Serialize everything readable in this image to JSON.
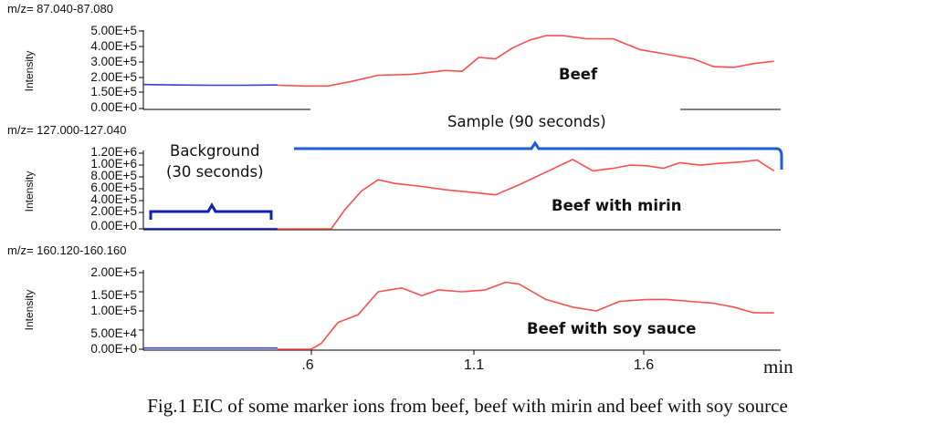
{
  "caption": "Fig.1 EIC of some marker ions from beef, beef with mirin and beef with soy source",
  "x_unit": "min",
  "x_ticks": [
    ".6",
    "1.1",
    "1.6"
  ],
  "annotations": {
    "background_line1": "Background",
    "background_line2": "(30 seconds)",
    "sample": "Sample (90 seconds)"
  },
  "colors": {
    "background_trace": "#3340c8",
    "sample_trace": "#ff4d4d",
    "bracket": "#1a5fd6",
    "bracket_dark": "#1020b0"
  },
  "chart_data": [
    {
      "type": "line",
      "mz_label": "m/z= 87.040-87.080",
      "ylabel": "Intensity",
      "panel_label": "Beef",
      "y_ticks": [
        "5.00E+5",
        "4.00E+5",
        "3.00E+5",
        "2.00E+5",
        "1.50E+5",
        "0.00E+0"
      ],
      "ylim": [
        0,
        500000
      ],
      "xlim": [
        0.1,
        2.0
      ],
      "series": [
        {
          "role": "background",
          "x": [
            0.1,
            0.2,
            0.3,
            0.4,
            0.5
          ],
          "y": [
            155000,
            152000,
            150000,
            150000,
            152000
          ]
        },
        {
          "role": "sample",
          "x": [
            0.5,
            0.58,
            0.65,
            0.72,
            0.8,
            0.9,
            1.0,
            1.05,
            1.1,
            1.15,
            1.2,
            1.25,
            1.3,
            1.35,
            1.42,
            1.5,
            1.58,
            1.66,
            1.74,
            1.8,
            1.86,
            1.92,
            1.98
          ],
          "y": [
            150000,
            145000,
            145000,
            175000,
            215000,
            220000,
            245000,
            240000,
            330000,
            320000,
            390000,
            440000,
            470000,
            470000,
            450000,
            450000,
            380000,
            350000,
            320000,
            270000,
            265000,
            290000,
            305000
          ]
        }
      ]
    },
    {
      "type": "line",
      "mz_label": "m/z= 127.000-127.040",
      "ylabel": "Intensity",
      "panel_label": "Beef with mirin",
      "y_ticks": [
        "1.20E+6",
        "1.00E+6",
        "8.00E+5",
        "6.00E+5",
        "4.00E+5",
        "2.00E+5",
        "0.00E+0"
      ],
      "ylim": [
        0,
        1200000
      ],
      "xlim": [
        0.1,
        2.0
      ],
      "series": [
        {
          "role": "background",
          "x": [
            0.1,
            0.3,
            0.5
          ],
          "y": [
            5000,
            5000,
            5000
          ]
        },
        {
          "role": "sample",
          "x": [
            0.5,
            0.58,
            0.66,
            0.7,
            0.75,
            0.8,
            0.85,
            0.92,
            1.0,
            1.08,
            1.15,
            1.22,
            1.3,
            1.38,
            1.44,
            1.5,
            1.55,
            1.6,
            1.65,
            1.7,
            1.76,
            1.82,
            1.88,
            1.93,
            1.98
          ],
          "y": [
            0,
            0,
            0,
            300000,
            600000,
            780000,
            720000,
            680000,
            620000,
            580000,
            540000,
            700000,
            900000,
            1100000,
            920000,
            960000,
            1010000,
            1000000,
            960000,
            1050000,
            1010000,
            1040000,
            1060000,
            1090000,
            920000
          ]
        }
      ]
    },
    {
      "type": "line",
      "mz_label": "m/z= 160.120-160.160",
      "ylabel": "Intensity",
      "panel_label": "Beef with soy sauce",
      "y_ticks": [
        "2.00E+5",
        "1.50E+5",
        "1.00E+5",
        "5.00E+4",
        "0.00E+0"
      ],
      "ylim": [
        0,
        200000
      ],
      "xlim": [
        0.1,
        2.0
      ],
      "series": [
        {
          "role": "background",
          "x": [
            0.1,
            0.3,
            0.5
          ],
          "y": [
            3000,
            3000,
            3000
          ]
        },
        {
          "role": "sample",
          "x": [
            0.5,
            0.6,
            0.63,
            0.68,
            0.74,
            0.8,
            0.87,
            0.93,
            0.98,
            1.05,
            1.12,
            1.18,
            1.22,
            1.3,
            1.38,
            1.45,
            1.52,
            1.6,
            1.66,
            1.73,
            1.8,
            1.86,
            1.92,
            1.98
          ],
          "y": [
            0,
            0,
            15000,
            70000,
            90000,
            150000,
            160000,
            140000,
            155000,
            150000,
            155000,
            175000,
            170000,
            130000,
            110000,
            100000,
            125000,
            130000,
            130000,
            125000,
            120000,
            110000,
            95000,
            95000
          ]
        }
      ]
    }
  ]
}
